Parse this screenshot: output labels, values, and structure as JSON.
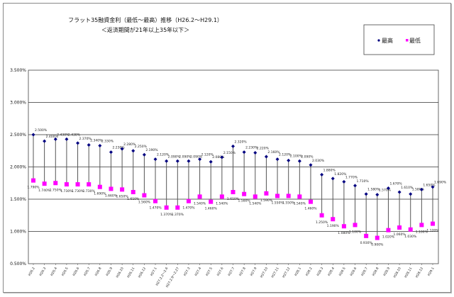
{
  "chart_data": {
    "type": "line",
    "title": "フラット35融資金利（最低～最高）推移（H26.2～H29.1）",
    "subtitle": "＜返済期間が21年以上35年以下＞",
    "xlabel": "",
    "ylabel": "",
    "ylim": [
      0.5,
      3.5
    ],
    "yticks": [
      "3.500%",
      "3.000%",
      "2.500%",
      "2.000%",
      "1.500%",
      "1.000%",
      "0.500%"
    ],
    "ytick_values": [
      3.5,
      3.0,
      2.5,
      2.0,
      1.5,
      1.0,
      0.5
    ],
    "grid": true,
    "legend_position": "top-right",
    "categories": [
      "H26.2",
      "H26.3",
      "H26.4",
      "H26.5",
      "H26.6",
      "H26.7",
      "H26.8",
      "H26.9",
      "H26.10",
      "H26.11",
      "H26.12",
      "H27.1",
      "H27.2.2～2.6",
      "H27.2.9～2.27",
      "H27.3",
      "H27.4",
      "H27.5",
      "H27.6",
      "H27.7",
      "H27.8",
      "H27.9",
      "H27.10",
      "H27.11",
      "H27.12",
      "H28.1",
      "H28.2",
      "H28.3",
      "H28.4",
      "H28.5",
      "H28.6",
      "H28.7",
      "H28.8",
      "H28.9",
      "H28.10",
      "H28.11",
      "H28.12",
      "H29.1"
    ],
    "series": [
      {
        "name": "最高",
        "color": "#000080",
        "marker": "diamond",
        "values": [
          2.5,
          2.4,
          2.43,
          2.43,
          2.37,
          2.34,
          2.33,
          2.23,
          2.28,
          2.25,
          2.19,
          2.12,
          2.09,
          2.09,
          2.09,
          2.12,
          2.08,
          2.15,
          2.32,
          2.23,
          2.22,
          2.16,
          2.12,
          2.1,
          2.09,
          2.03,
          1.88,
          1.82,
          1.77,
          1.71,
          1.58,
          1.57,
          1.67,
          1.61,
          1.58,
          1.65,
          1.69
        ],
        "labels": [
          "2.500%",
          "2.400%",
          "2.430%",
          "2.430%",
          "2.370%",
          "2.340%",
          "2.330%",
          "2.230%",
          "2.280%",
          "2.250%",
          "2.190%",
          "2.120%",
          "2.090%",
          "2.090%",
          "2.090%",
          "2.120%",
          "2.080%",
          "2.150%",
          "2.320%",
          "2.230%",
          "2.220%",
          "2.160%",
          "2.120%",
          "2.100%",
          "2.090%",
          "2.030%",
          "1.880%",
          "1.820%",
          "1.770%",
          "1.710%",
          "1.580%",
          "1.570%",
          "1.670%",
          "1.610%",
          "1.580%",
          "1.650%",
          "1.690%"
        ]
      },
      {
        "name": "最低",
        "color": "#ff00ff",
        "marker": "square",
        "values": [
          1.79,
          1.74,
          1.75,
          1.73,
          1.73,
          1.73,
          1.69,
          1.66,
          1.65,
          1.61,
          1.56,
          1.47,
          1.37,
          1.37,
          1.47,
          1.54,
          1.46,
          1.54,
          1.61,
          1.58,
          1.54,
          1.59,
          1.55,
          1.55,
          1.54,
          1.46,
          1.25,
          1.19,
          1.08,
          1.1,
          0.93,
          0.9,
          1.02,
          1.06,
          1.03,
          1.1,
          1.12
        ],
        "labels": [
          "1.790%",
          "1.740%",
          "1.750%",
          "1.730%",
          "1.730%",
          "1.730%",
          "1.690%",
          "1.660%",
          "1.650%",
          "1.610%",
          "1.560%",
          "1.470%",
          "1.370%",
          "1.370%",
          "1.470%",
          "1.540%",
          "1.460%",
          "1.540%",
          "1.610%",
          "1.580%",
          "1.540%",
          "1.590%",
          "1.550%",
          "1.550%",
          "1.540%",
          "1.460%",
          "1.250%",
          "1.190%",
          "1.080%",
          "1.100%",
          "0.930%",
          "0.900%",
          "1.020%",
          "1.060%",
          "1.030%",
          "1.100%",
          "1.120%"
        ]
      }
    ]
  }
}
